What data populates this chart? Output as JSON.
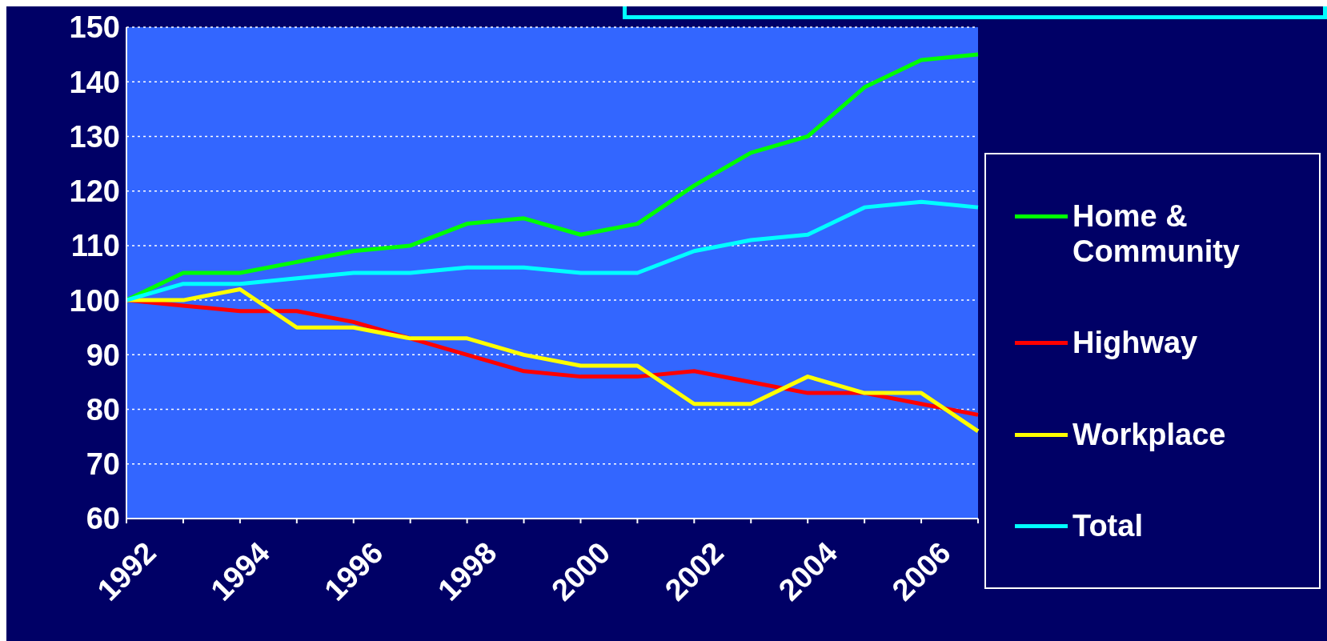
{
  "chart_data": {
    "type": "line",
    "categories": [
      "1992",
      null,
      "1994",
      null,
      "1996",
      null,
      "1998",
      null,
      "2000",
      null,
      "2002",
      null,
      "2004",
      null,
      "2006",
      null
    ],
    "series": [
      {
        "name": "Home & Community",
        "color": "#00ff00",
        "values": [
          100,
          105,
          105,
          107,
          109,
          110,
          114,
          115,
          112,
          114,
          121,
          127,
          130,
          139,
          144,
          145
        ]
      },
      {
        "name": "Highway",
        "color": "#ff0000",
        "values": [
          100,
          99,
          98,
          98,
          96,
          93,
          90,
          87,
          86,
          86,
          87,
          85,
          83,
          83,
          81,
          79
        ]
      },
      {
        "name": "Workplace",
        "color": "#ffff00",
        "values": [
          100,
          100,
          102,
          95,
          95,
          93,
          93,
          90,
          88,
          88,
          81,
          81,
          86,
          83,
          83,
          76
        ]
      },
      {
        "name": "Total",
        "color": "#00ffff",
        "values": [
          100,
          103,
          103,
          104,
          105,
          105,
          106,
          106,
          105,
          105,
          109,
          111,
          112,
          117,
          118,
          117
        ]
      }
    ],
    "ylim": [
      60,
      150
    ],
    "yticks": [
      60,
      70,
      80,
      90,
      100,
      110,
      120,
      130,
      140,
      150
    ],
    "grid": "y",
    "legend": "right",
    "marker": "none",
    "line_style": "solid"
  }
}
